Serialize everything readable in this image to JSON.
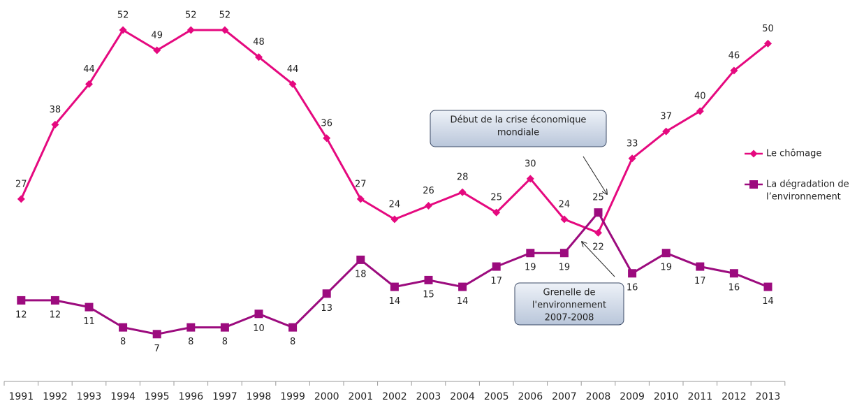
{
  "chart_data": {
    "type": "line",
    "categories": [
      "1991",
      "1992",
      "1993",
      "1994",
      "1995",
      "1996",
      "1997",
      "1998",
      "1999",
      "2000",
      "2001",
      "2002",
      "2003",
      "2004",
      "2005",
      "2006",
      "2007",
      "2008",
      "2009",
      "2010",
      "2011",
      "2012",
      "2013"
    ],
    "series": [
      {
        "name": "Le chômage",
        "color": "#e5097f",
        "marker": "diamond",
        "values": [
          27,
          38,
          44,
          52,
          49,
          52,
          52,
          48,
          44,
          36,
          27,
          24,
          26,
          28,
          25,
          30,
          24,
          22,
          33,
          37,
          40,
          46,
          50
        ]
      },
      {
        "name": [
          "La dégradation de",
          "l’environnement"
        ],
        "color": "#9c0b7e",
        "marker": "square",
        "values": [
          12,
          12,
          11,
          8,
          7,
          8,
          8,
          10,
          8,
          13,
          18,
          14,
          15,
          14,
          17,
          19,
          19,
          25,
          16,
          19,
          17,
          16,
          14
        ]
      }
    ],
    "ylim": [
      0,
      55
    ],
    "annotations": [
      {
        "text": [
          "Début de la crise économique",
          "mondiale"
        ]
      },
      {
        "text": [
          "Grenelle de",
          "l'environnement",
          "2007-2008"
        ]
      }
    ],
    "legend": "right"
  }
}
